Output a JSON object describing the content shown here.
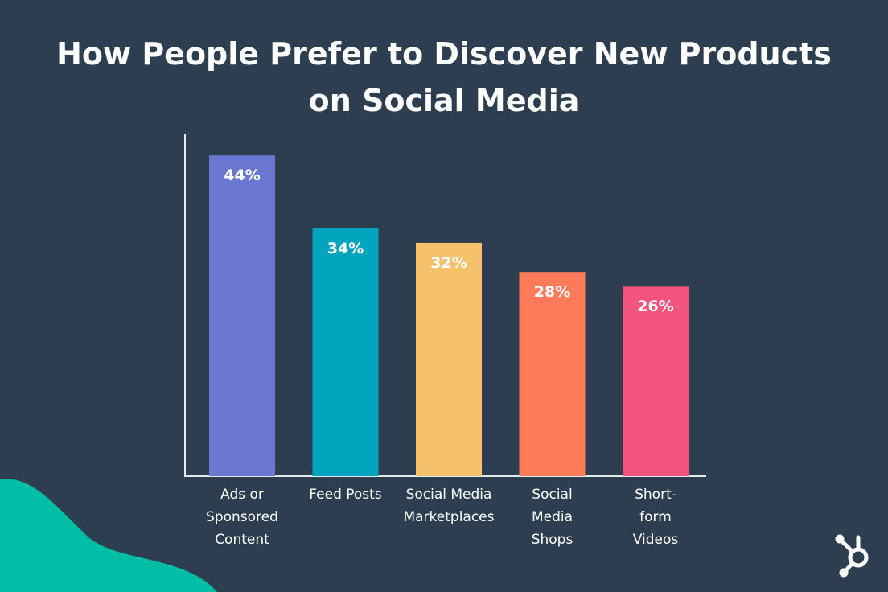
{
  "chart_data": {
    "type": "bar",
    "title": "How People Prefer to Discover New Products\non Social Media",
    "categories": [
      "Ads or\nSponsored\nContent",
      "Feed Posts",
      "Social Media\nMarketplaces",
      "Social\nMedia\nShops",
      "Short-\nform\nVideos"
    ],
    "values": [
      44,
      34,
      32,
      28,
      26
    ],
    "value_labels": [
      "44%",
      "34%",
      "32%",
      "28%",
      "26%"
    ],
    "colors": [
      "#6a78d1",
      "#00a4bd",
      "#f5c26b",
      "#ff7a59",
      "#f2547d"
    ],
    "ylim": [
      0,
      47
    ]
  }
}
